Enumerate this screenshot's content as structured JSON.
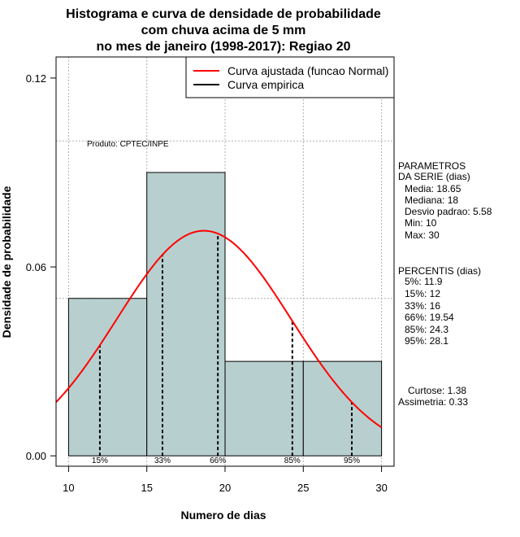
{
  "colors": {
    "bar_fill": "#b8cfcf",
    "fitted_curve": "#ff0000",
    "empirical_curve": "#000000",
    "grid": "#b0b0b0"
  },
  "chart_data": {
    "type": "bar",
    "title_lines": [
      "Histograma e curva de densidade de probabilidade",
      "com chuva acima de 5 mm",
      "no mes de janeiro (1998-2017): Regiao 20"
    ],
    "xlabel": "Numero de dias",
    "ylabel": "Densidade de probabilidade",
    "xlim": [
      9.2,
      30.8
    ],
    "ylim": [
      -0.0033,
      0.1267
    ],
    "x_ticks": [
      10,
      15,
      20,
      25,
      30
    ],
    "y_ticks": [
      0.0,
      0.06,
      0.12
    ],
    "y_tick_labels": [
      "0.00",
      "0.06",
      "0.12"
    ],
    "grid": true,
    "grid_x": [
      10,
      15,
      20,
      25,
      30
    ],
    "grid_y": [
      0.05,
      0.1
    ],
    "bins": [
      {
        "start": 10,
        "end": 15,
        "density": 0.05
      },
      {
        "start": 15,
        "end": 20,
        "density": 0.09
      },
      {
        "start": 20,
        "end": 25,
        "density": 0.03
      },
      {
        "start": 25,
        "end": 30,
        "density": 0.03
      }
    ],
    "fitted_normal": {
      "mean": 18.65,
      "sd": 5.58,
      "x_range": [
        9.2,
        30
      ]
    },
    "percentiles": [
      {
        "label": "15%",
        "x": 12
      },
      {
        "label": "33%",
        "x": 16
      },
      {
        "label": "66%",
        "x": 19.54
      },
      {
        "label": "85%",
        "x": 24.3
      },
      {
        "label": "95%",
        "x": 28.1
      }
    ],
    "legend": {
      "position": "top-right",
      "entries": [
        {
          "label": "Curva ajustada (funcao Normal)",
          "color": "#ff0000"
        },
        {
          "label": "Curva empirica",
          "color": "#000000"
        }
      ]
    },
    "credit": "Produto: CPTEC/INPE"
  },
  "stats": {
    "params_title": [
      "PARAMETROS",
      "DA SERIE (dias)"
    ],
    "params": [
      "Media: 18.65",
      "Mediana: 18",
      "Desvio padrao: 5.58",
      "Min: 10",
      "Max: 30"
    ],
    "percentis_title": "PERCENTIS (dias)",
    "percentis": [
      "5%: 11.9",
      "15%: 12",
      "33%: 16",
      "66%: 19.54",
      "85%: 24.3",
      "95%: 28.1"
    ],
    "shape": [
      "Curtose: 1.38",
      "Assimetria: 0.33"
    ]
  }
}
